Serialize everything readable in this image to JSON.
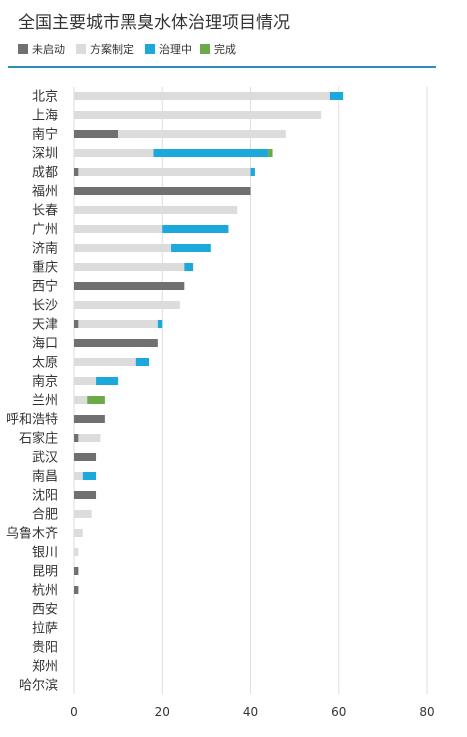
{
  "chart_data": {
    "type": "bar",
    "orientation": "horizontal",
    "stacked": true,
    "title": "全国主要城市黑臭水体治理项目情况",
    "legend_position": "top-left",
    "xlim": [
      0,
      80
    ],
    "x_ticks": [
      "0",
      "20",
      "40",
      "60",
      "80"
    ],
    "grid": true,
    "categories": [
      "北京",
      "上海",
      "南宁",
      "深圳",
      "成都",
      "福州",
      "长春",
      "广州",
      "济南",
      "重庆",
      "西宁",
      "长沙",
      "天津",
      "海口",
      "太原",
      "南京",
      "兰州",
      "呼和浩特",
      "石家庄",
      "武汉",
      "南昌",
      "沈阳",
      "合肥",
      "乌鲁木齐",
      "银川",
      "昆明",
      "杭州",
      "西安",
      "拉萨",
      "贵阳",
      "郑州",
      "哈尔滨"
    ],
    "series": [
      {
        "name": "未启动",
        "color": "#707070",
        "values": [
          0,
          0,
          10,
          0,
          1,
          40,
          0,
          0,
          0,
          0,
          25,
          0,
          1,
          19,
          0,
          0,
          0,
          7,
          1,
          5,
          0,
          5,
          0,
          0,
          0,
          1,
          1,
          0,
          0,
          0,
          0,
          0
        ]
      },
      {
        "name": "方案制定",
        "color": "#dcdcdc",
        "values": [
          58,
          56,
          38,
          18,
          39,
          0,
          37,
          20,
          22,
          25,
          0,
          24,
          18,
          0,
          14,
          5,
          3,
          0,
          5,
          0,
          2,
          0,
          4,
          2,
          1,
          0,
          0,
          0,
          0,
          0,
          0,
          0
        ]
      },
      {
        "name": "治理中",
        "color": "#1ba9dc",
        "values": [
          3,
          0,
          0,
          26,
          1,
          0,
          0,
          15,
          9,
          2,
          0,
          0,
          1,
          0,
          3,
          5,
          0,
          0,
          0,
          0,
          3,
          0,
          0,
          0,
          0,
          0,
          0,
          0,
          0,
          0,
          0,
          0
        ]
      },
      {
        "name": "完成",
        "color": "#6aaa4a",
        "values": [
          0,
          0,
          0,
          1,
          0,
          0,
          0,
          0,
          0,
          0,
          0,
          0,
          0,
          0,
          0,
          0,
          4,
          0,
          0,
          0,
          0,
          0,
          0,
          0,
          0,
          0,
          0,
          0,
          0,
          0,
          0,
          0
        ]
      }
    ]
  },
  "colors": {
    "title_rule": "#2a8fb5",
    "gridline": "#dddddd"
  }
}
